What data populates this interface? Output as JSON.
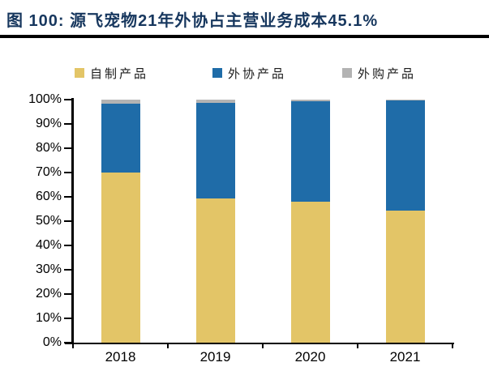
{
  "title": {
    "text": "图 100: 源飞宠物21年外协占主营业务成本45.1%"
  },
  "chart_data": {
    "type": "bar",
    "stacked": true,
    "percent_stacked": true,
    "title": "图 100: 源飞宠物21年外协占主营业务成本45.1%",
    "categories": [
      "2018",
      "2019",
      "2020",
      "2021"
    ],
    "series": [
      {
        "name": "自制产品",
        "color": "#E3C567",
        "values": [
          69.9,
          59.2,
          58.0,
          54.5
        ]
      },
      {
        "name": "外协产品",
        "color": "#1F6CA8",
        "values": [
          28.4,
          39.4,
          41.3,
          45.1
        ]
      },
      {
        "name": "外购产品",
        "color": "#B3B3B3",
        "values": [
          1.7,
          1.4,
          0.7,
          0.4
        ]
      }
    ],
    "xlabel": "",
    "ylabel": "",
    "ylim": [
      0,
      100
    ],
    "yticks": [
      "0%",
      "10%",
      "20%",
      "30%",
      "40%",
      "50%",
      "60%",
      "70%",
      "80%",
      "90%",
      "100%"
    ],
    "grid": false,
    "legend_position": "top"
  },
  "colors": {
    "title": "#17375E",
    "rule": "#000000",
    "axis": "#000000"
  }
}
